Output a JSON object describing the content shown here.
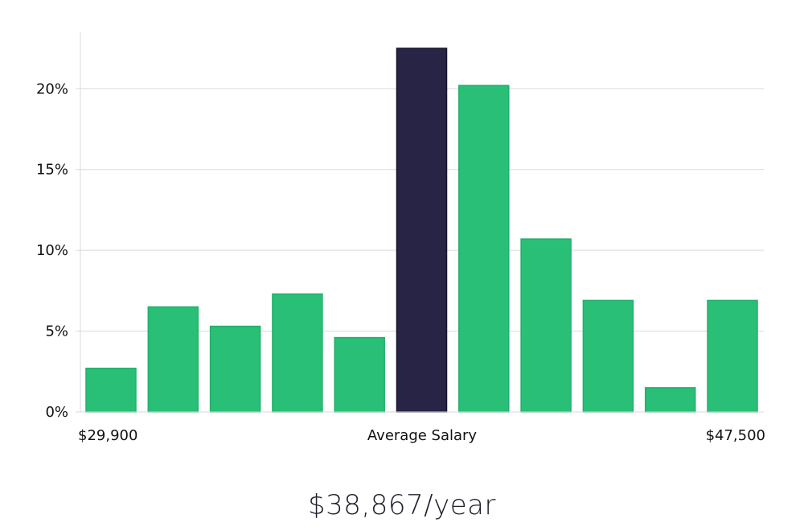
{
  "colors": {
    "bar": "#29bf77",
    "highlight_bar": "#272446",
    "grid": "#d9d9d9",
    "text": "#111111"
  },
  "chart_data": {
    "type": "bar",
    "title": "",
    "xlabel": "",
    "ylabel": "",
    "x_labels": {
      "left": "$29,900",
      "center": "Average Salary",
      "right": "$47,500"
    },
    "values": [
      2.7,
      6.5,
      5.3,
      7.3,
      4.6,
      22.5,
      20.2,
      10.7,
      6.9,
      1.5,
      6.9
    ],
    "highlight_index": 5,
    "ylim": [
      0,
      23.5
    ],
    "yticks": [
      0,
      5,
      10,
      15,
      20
    ],
    "ytick_labels": [
      "0%",
      "5%",
      "10%",
      "15%",
      "20%"
    ],
    "grid": true,
    "legend": "none"
  },
  "caption": {
    "salary": "$38,867/year"
  }
}
